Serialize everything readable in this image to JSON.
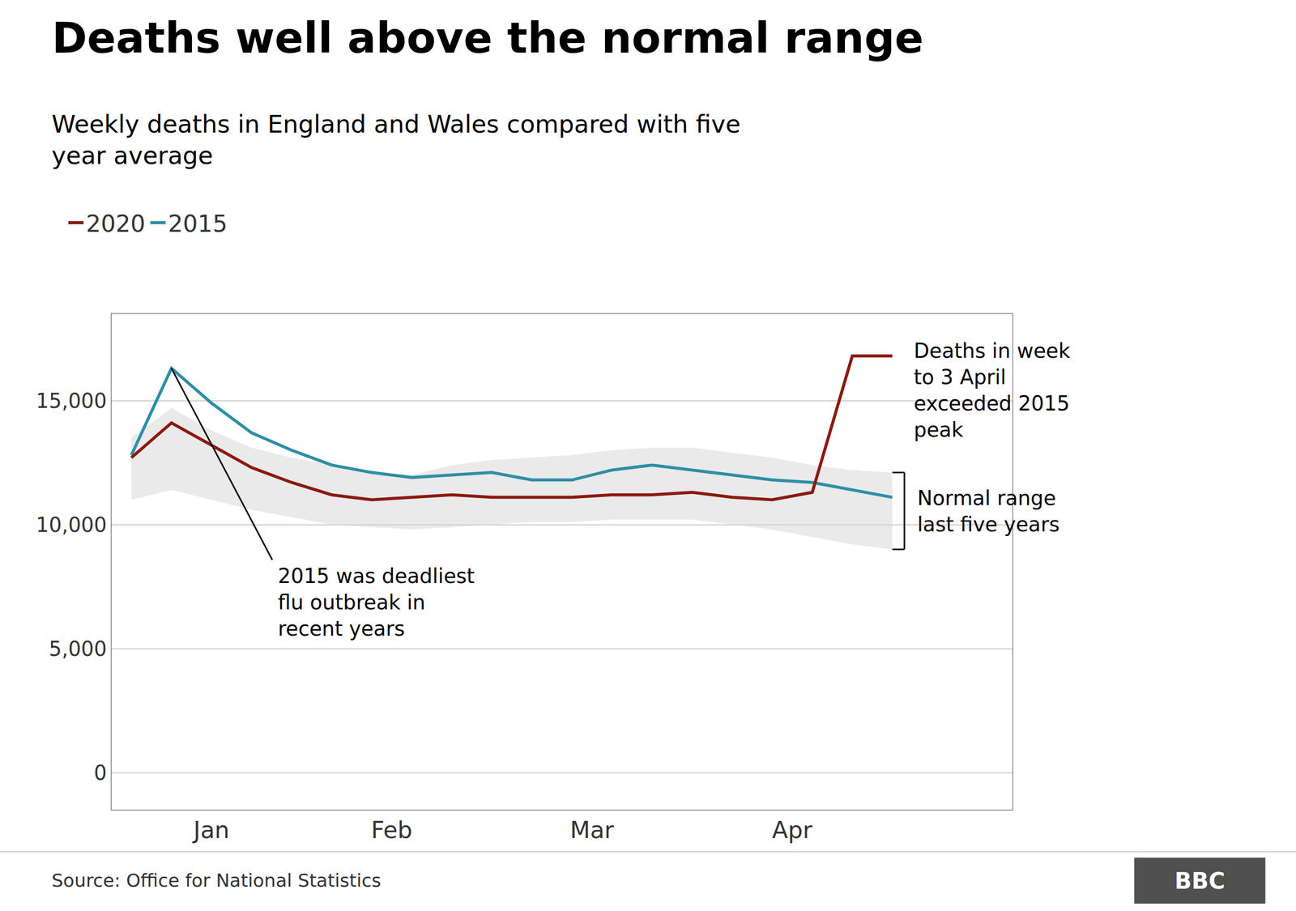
{
  "chart_data": {
    "type": "line",
    "title": "Deaths well above the normal range",
    "subtitle": "Weekly deaths in England and Wales compared with five\nyear average",
    "source": "Source: Office for National Statistics",
    "logo": "BBC",
    "x": [
      0,
      1,
      2,
      3,
      4,
      5,
      6,
      7,
      8,
      9,
      10,
      11,
      12,
      13,
      14,
      15,
      16,
      17,
      18,
      19
    ],
    "xlim": [
      -0.5,
      22
    ],
    "xticks": [
      {
        "value": 2,
        "label": "Jan"
      },
      {
        "value": 6.5,
        "label": "Feb"
      },
      {
        "value": 11.5,
        "label": "Mar"
      },
      {
        "value": 16.5,
        "label": "Apr"
      }
    ],
    "ylim": [
      -1500,
      18500
    ],
    "yticks": [
      0,
      {
        "value": 5000,
        "label": "5,000"
      },
      {
        "value": 10000,
        "label": "10,000"
      },
      {
        "value": 15000,
        "label": "15,000"
      }
    ],
    "grid": "y",
    "legend": "top left",
    "series": [
      {
        "name": "2015",
        "color": "#2e8fa5",
        "values": [
          12800,
          16300,
          14900,
          13700,
          13000,
          12400,
          12100,
          11900,
          12000,
          12100,
          11800,
          11800,
          12200,
          12400,
          12200,
          12000,
          11800,
          11700,
          11400,
          11100
        ]
      },
      {
        "name": "2020",
        "color": "#8b1a10",
        "values": [
          12700,
          14100,
          13200,
          12300,
          11700,
          11200,
          11000,
          11100,
          11200,
          11100,
          11100,
          11100,
          11200,
          11200,
          11300,
          11100,
          11000,
          11300,
          16800,
          16800
        ]
      }
    ],
    "band": {
      "label": "Normal range\nlast five years",
      "color": "#d0d0d0",
      "upper": [
        13500,
        14700,
        13800,
        13100,
        12700,
        12400,
        12100,
        12000,
        12400,
        12600,
        12700,
        12800,
        13000,
        13100,
        13100,
        12900,
        12700,
        12400,
        12200,
        12100
      ],
      "lower": [
        11000,
        11400,
        11000,
        10600,
        10300,
        10000,
        9900,
        9800,
        9900,
        10000,
        10100,
        10100,
        10200,
        10200,
        10200,
        10000,
        9800,
        9500,
        9200,
        9000
      ]
    },
    "annotations": [
      {
        "text": "2015 was deadliest\nflu outbreak in\nrecent years",
        "series": "2015"
      },
      {
        "text": "Deaths in week\nto 3 April\nexceeded 2015\npeak",
        "series": "2020"
      }
    ]
  }
}
